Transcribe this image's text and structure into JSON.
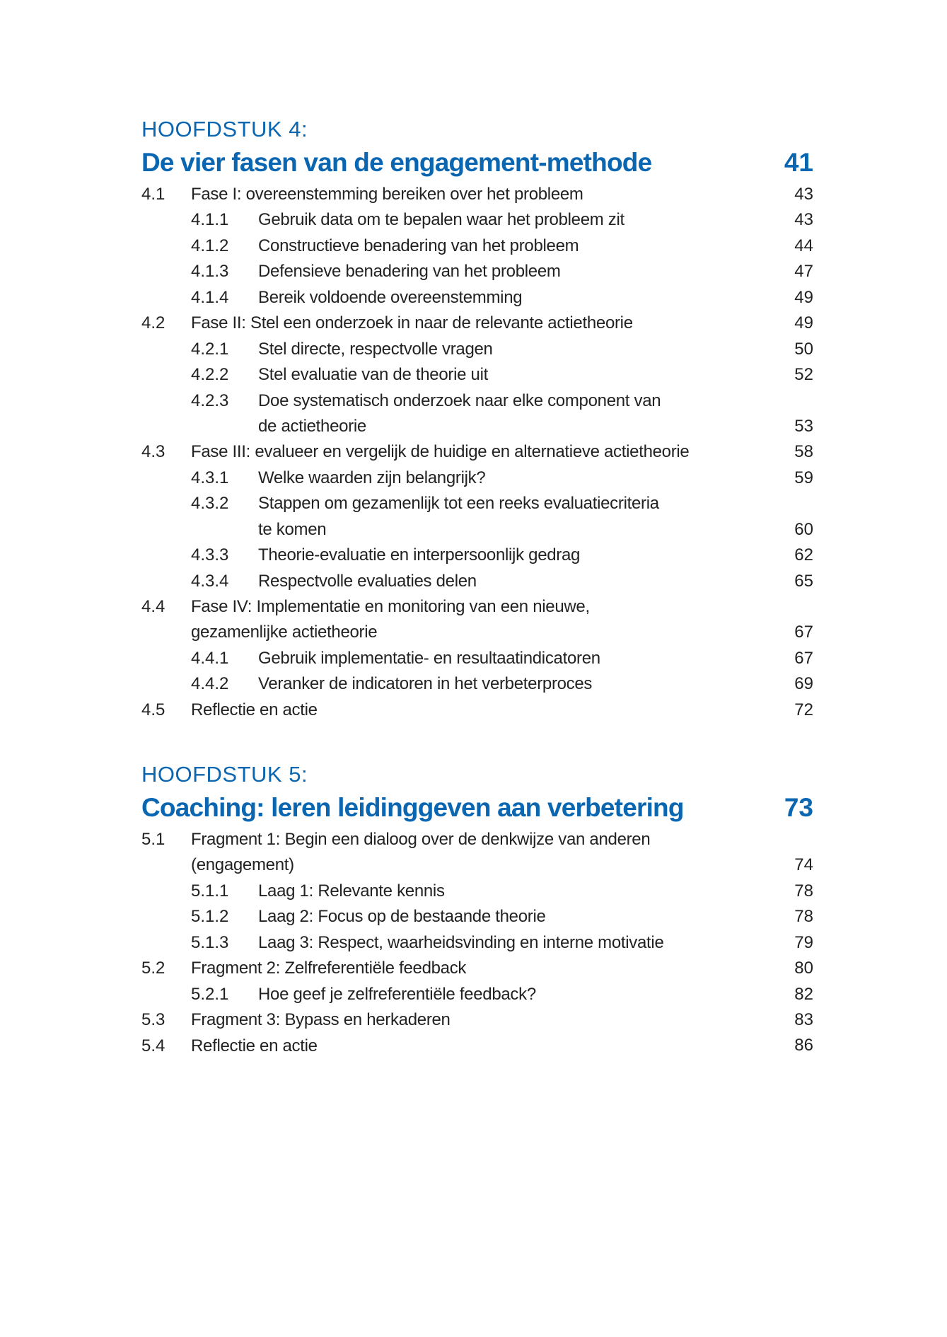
{
  "colors": {
    "accent": "#0a66b0",
    "text": "#222222"
  },
  "chapters": [
    {
      "label": "HOOFDSTUK 4:",
      "title": "De vier fasen van de engagement-methode",
      "page": "41",
      "entries": [
        {
          "level": 1,
          "num": "4.1",
          "lines": [
            "Fase I: overeenstemming bereiken over het probleem"
          ],
          "page": "43"
        },
        {
          "level": 2,
          "num": "4.1.1",
          "lines": [
            "Gebruik data om te bepalen waar het probleem zit"
          ],
          "page": "43"
        },
        {
          "level": 2,
          "num": "4.1.2",
          "lines": [
            "Constructieve benadering van het probleem"
          ],
          "page": "44"
        },
        {
          "level": 2,
          "num": "4.1.3",
          "lines": [
            "Defensieve benadering van het probleem"
          ],
          "page": "47"
        },
        {
          "level": 2,
          "num": "4.1.4",
          "lines": [
            "Bereik voldoende overeenstemming"
          ],
          "page": "49"
        },
        {
          "level": 1,
          "num": "4.2",
          "lines": [
            "Fase II: Stel een onderzoek in naar de relevante actietheorie"
          ],
          "page": "49"
        },
        {
          "level": 2,
          "num": "4.2.1",
          "lines": [
            "Stel directe, respectvolle vragen"
          ],
          "page": "50"
        },
        {
          "level": 2,
          "num": "4.2.2",
          "lines": [
            "Stel evaluatie van de theorie uit"
          ],
          "page": "52"
        },
        {
          "level": 2,
          "num": "4.2.3",
          "lines": [
            "Doe systematisch onderzoek naar elke component van",
            "de actietheorie"
          ],
          "page": "53"
        },
        {
          "level": 1,
          "num": "4.3",
          "lines": [
            "Fase III: evalueer en vergelijk de huidige en alternatieve actietheorie"
          ],
          "page": "58"
        },
        {
          "level": 2,
          "num": "4.3.1",
          "lines": [
            "Welke waarden zijn belangrijk?"
          ],
          "page": "59"
        },
        {
          "level": 2,
          "num": "4.3.2",
          "lines": [
            "Stappen om gezamenlijk tot een reeks evaluatiecriteria",
            "te komen"
          ],
          "page": "60"
        },
        {
          "level": 2,
          "num": "4.3.3",
          "lines": [
            "Theorie-evaluatie en interpersoonlijk gedrag"
          ],
          "page": "62"
        },
        {
          "level": 2,
          "num": "4.3.4",
          "lines": [
            "Respectvolle evaluaties delen"
          ],
          "page": "65"
        },
        {
          "level": 1,
          "num": "4.4",
          "lines": [
            "Fase IV: Implementatie en monitoring van een nieuwe,",
            "gezamenlijke actietheorie"
          ],
          "page": "67"
        },
        {
          "level": 2,
          "num": "4.4.1",
          "lines": [
            "Gebruik implementatie- en resultaatindicatoren"
          ],
          "page": "67"
        },
        {
          "level": 2,
          "num": "4.4.2",
          "lines": [
            "Veranker de indicatoren in het verbeterproces"
          ],
          "page": "69"
        },
        {
          "level": 1,
          "num": "4.5",
          "lines": [
            "Reflectie en actie"
          ],
          "page": "72"
        }
      ]
    },
    {
      "label": "HOOFDSTUK 5:",
      "title": "Coaching: leren leidinggeven aan verbetering",
      "page": "73",
      "entries": [
        {
          "level": 1,
          "num": "5.1",
          "lines": [
            "Fragment 1: Begin een dialoog over de denkwijze van anderen",
            "(engagement)"
          ],
          "page": "74"
        },
        {
          "level": 2,
          "num": "5.1.1",
          "lines": [
            "Laag 1: Relevante kennis"
          ],
          "page": "78"
        },
        {
          "level": 2,
          "num": "5.1.2",
          "lines": [
            "Laag 2: Focus op de bestaande theorie"
          ],
          "page": "78"
        },
        {
          "level": 2,
          "num": "5.1.3",
          "lines": [
            "Laag 3: Respect, waarheidsvinding en interne motivatie"
          ],
          "page": "79"
        },
        {
          "level": 1,
          "num": "5.2",
          "lines": [
            "Fragment 2: Zelfreferentiële feedback"
          ],
          "page": "80"
        },
        {
          "level": 2,
          "num": "5.2.1",
          "lines": [
            "Hoe geef je zelfreferentiële feedback?"
          ],
          "page": "82"
        },
        {
          "level": 1,
          "num": "5.3",
          "lines": [
            "Fragment 3: Bypass en herkaderen"
          ],
          "page": "83"
        },
        {
          "level": 1,
          "num": "5.4",
          "lines": [
            "Reflectie en actie"
          ],
          "page": "86"
        }
      ]
    }
  ]
}
